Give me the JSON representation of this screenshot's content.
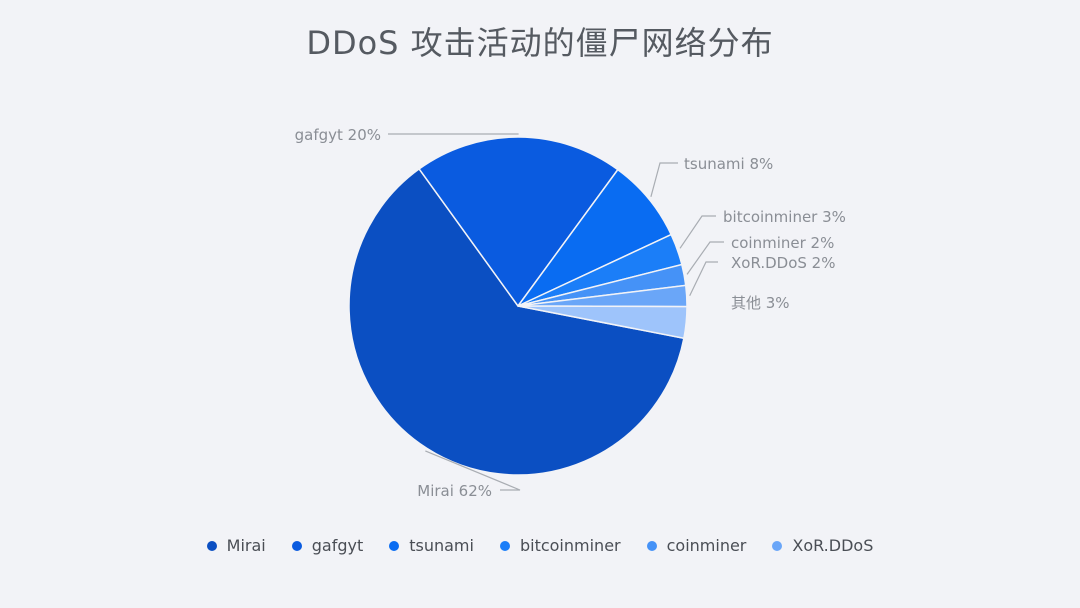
{
  "chart_data": {
    "type": "pie",
    "title": "DDoS 攻击活动的僵尸网络分布",
    "slices": [
      {
        "name": "Mirai",
        "label": "Mirai 62%",
        "value": 62,
        "color": "#0b4fc2"
      },
      {
        "name": "gafgyt",
        "label": "gafgyt 20%",
        "value": 20,
        "color": "#0a5be0"
      },
      {
        "name": "tsunami",
        "label": "tsunami 8%",
        "value": 8,
        "color": "#096cf2"
      },
      {
        "name": "bitcoinminer",
        "label": "bitcoinminer 3%",
        "value": 3,
        "color": "#1b7ef8"
      },
      {
        "name": "coinminer",
        "label": "coinminer 2%",
        "value": 2,
        "color": "#4592f7"
      },
      {
        "name": "XoR.DDoS",
        "label": "XoR.DDoS 2%",
        "value": 2,
        "color": "#6aa6f8"
      },
      {
        "name": "其他",
        "label": "其他 3%",
        "value": 3,
        "color": "#9ec4fb"
      }
    ],
    "legend": [
      "Mirai",
      "gafgyt",
      "tsunami",
      "bitcoinminer",
      "coinminer",
      "XoR.DDoS"
    ],
    "legend_position": "bottom"
  }
}
